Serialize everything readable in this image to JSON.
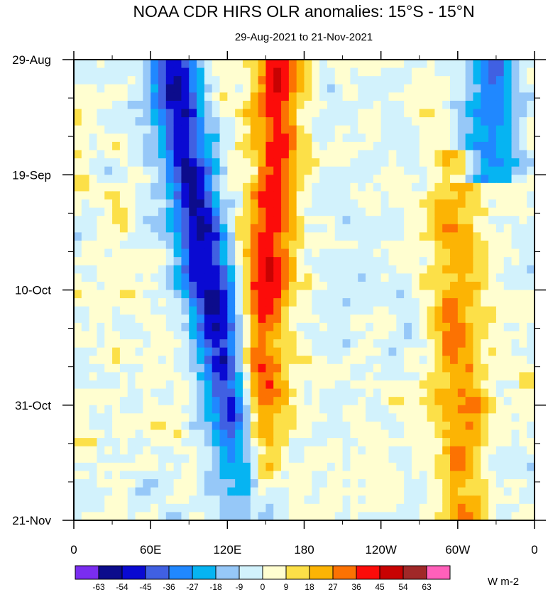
{
  "chart_data": {
    "type": "heatmap",
    "title": "NOAA CDR HIRS OLR anomalies: 15°S - 15°N",
    "subtitle": "29-Aug-2021 to 21-Nov-2021",
    "x_tick_labels": [
      "0",
      "60E",
      "120E",
      "180",
      "120W",
      "60W",
      "0"
    ],
    "x_tick_values_deg_east": [
      0,
      60,
      120,
      180,
      240,
      300,
      360
    ],
    "xlim_deg_east": [
      0,
      360
    ],
    "y_tick_labels": [
      "29-Aug",
      "19-Sep",
      "10-Oct",
      "31-Oct",
      "21-Nov"
    ],
    "y_tick_values_day": [
      0,
      21,
      42,
      63,
      84
    ],
    "ylim_day": [
      0,
      84
    ],
    "y_axis_reversed": true,
    "colorbar": {
      "levels": [
        -63,
        -54,
        -45,
        -36,
        -27,
        -18,
        -9,
        0,
        9,
        18,
        27,
        36,
        45,
        54,
        63
      ],
      "level_labels": [
        "-63",
        "-54",
        "-45",
        "-36",
        "-27",
        "-18",
        "-9",
        "0",
        "9",
        "18",
        "27",
        "36",
        "45",
        "54",
        "63"
      ],
      "colors": [
        "#7a2df0",
        "#0c0c8c",
        "#0a0ad2",
        "#4060e2",
        "#2088ff",
        "#06b4f2",
        "#96c8f8",
        "#d2f2fc",
        "#fffed0",
        "#fce048",
        "#fcb404",
        "#fc7202",
        "#fc0c0a",
        "#c80202",
        "#a02828",
        "#ff60ba"
      ],
      "units": "W m-2"
    },
    "features": [
      {
        "name": "negative anomaly band",
        "lon_start": 75,
        "day_start": 0,
        "lon_end": 140,
        "day_end": 84,
        "peak": -55
      },
      {
        "name": "positive anomaly band",
        "lon_start": 160,
        "day_start": 0,
        "lon_end": 140,
        "day_end": 84,
        "peak": 40
      },
      {
        "name": "positive anomaly patch",
        "lon_start": 300,
        "day_start": 20,
        "lon_end": 300,
        "day_end": 84,
        "peak": 25
      },
      {
        "name": "negative anomaly patch",
        "lon_start": 330,
        "day_start": 0,
        "lon_end": 320,
        "day_end": 20,
        "peak": -35
      }
    ]
  }
}
